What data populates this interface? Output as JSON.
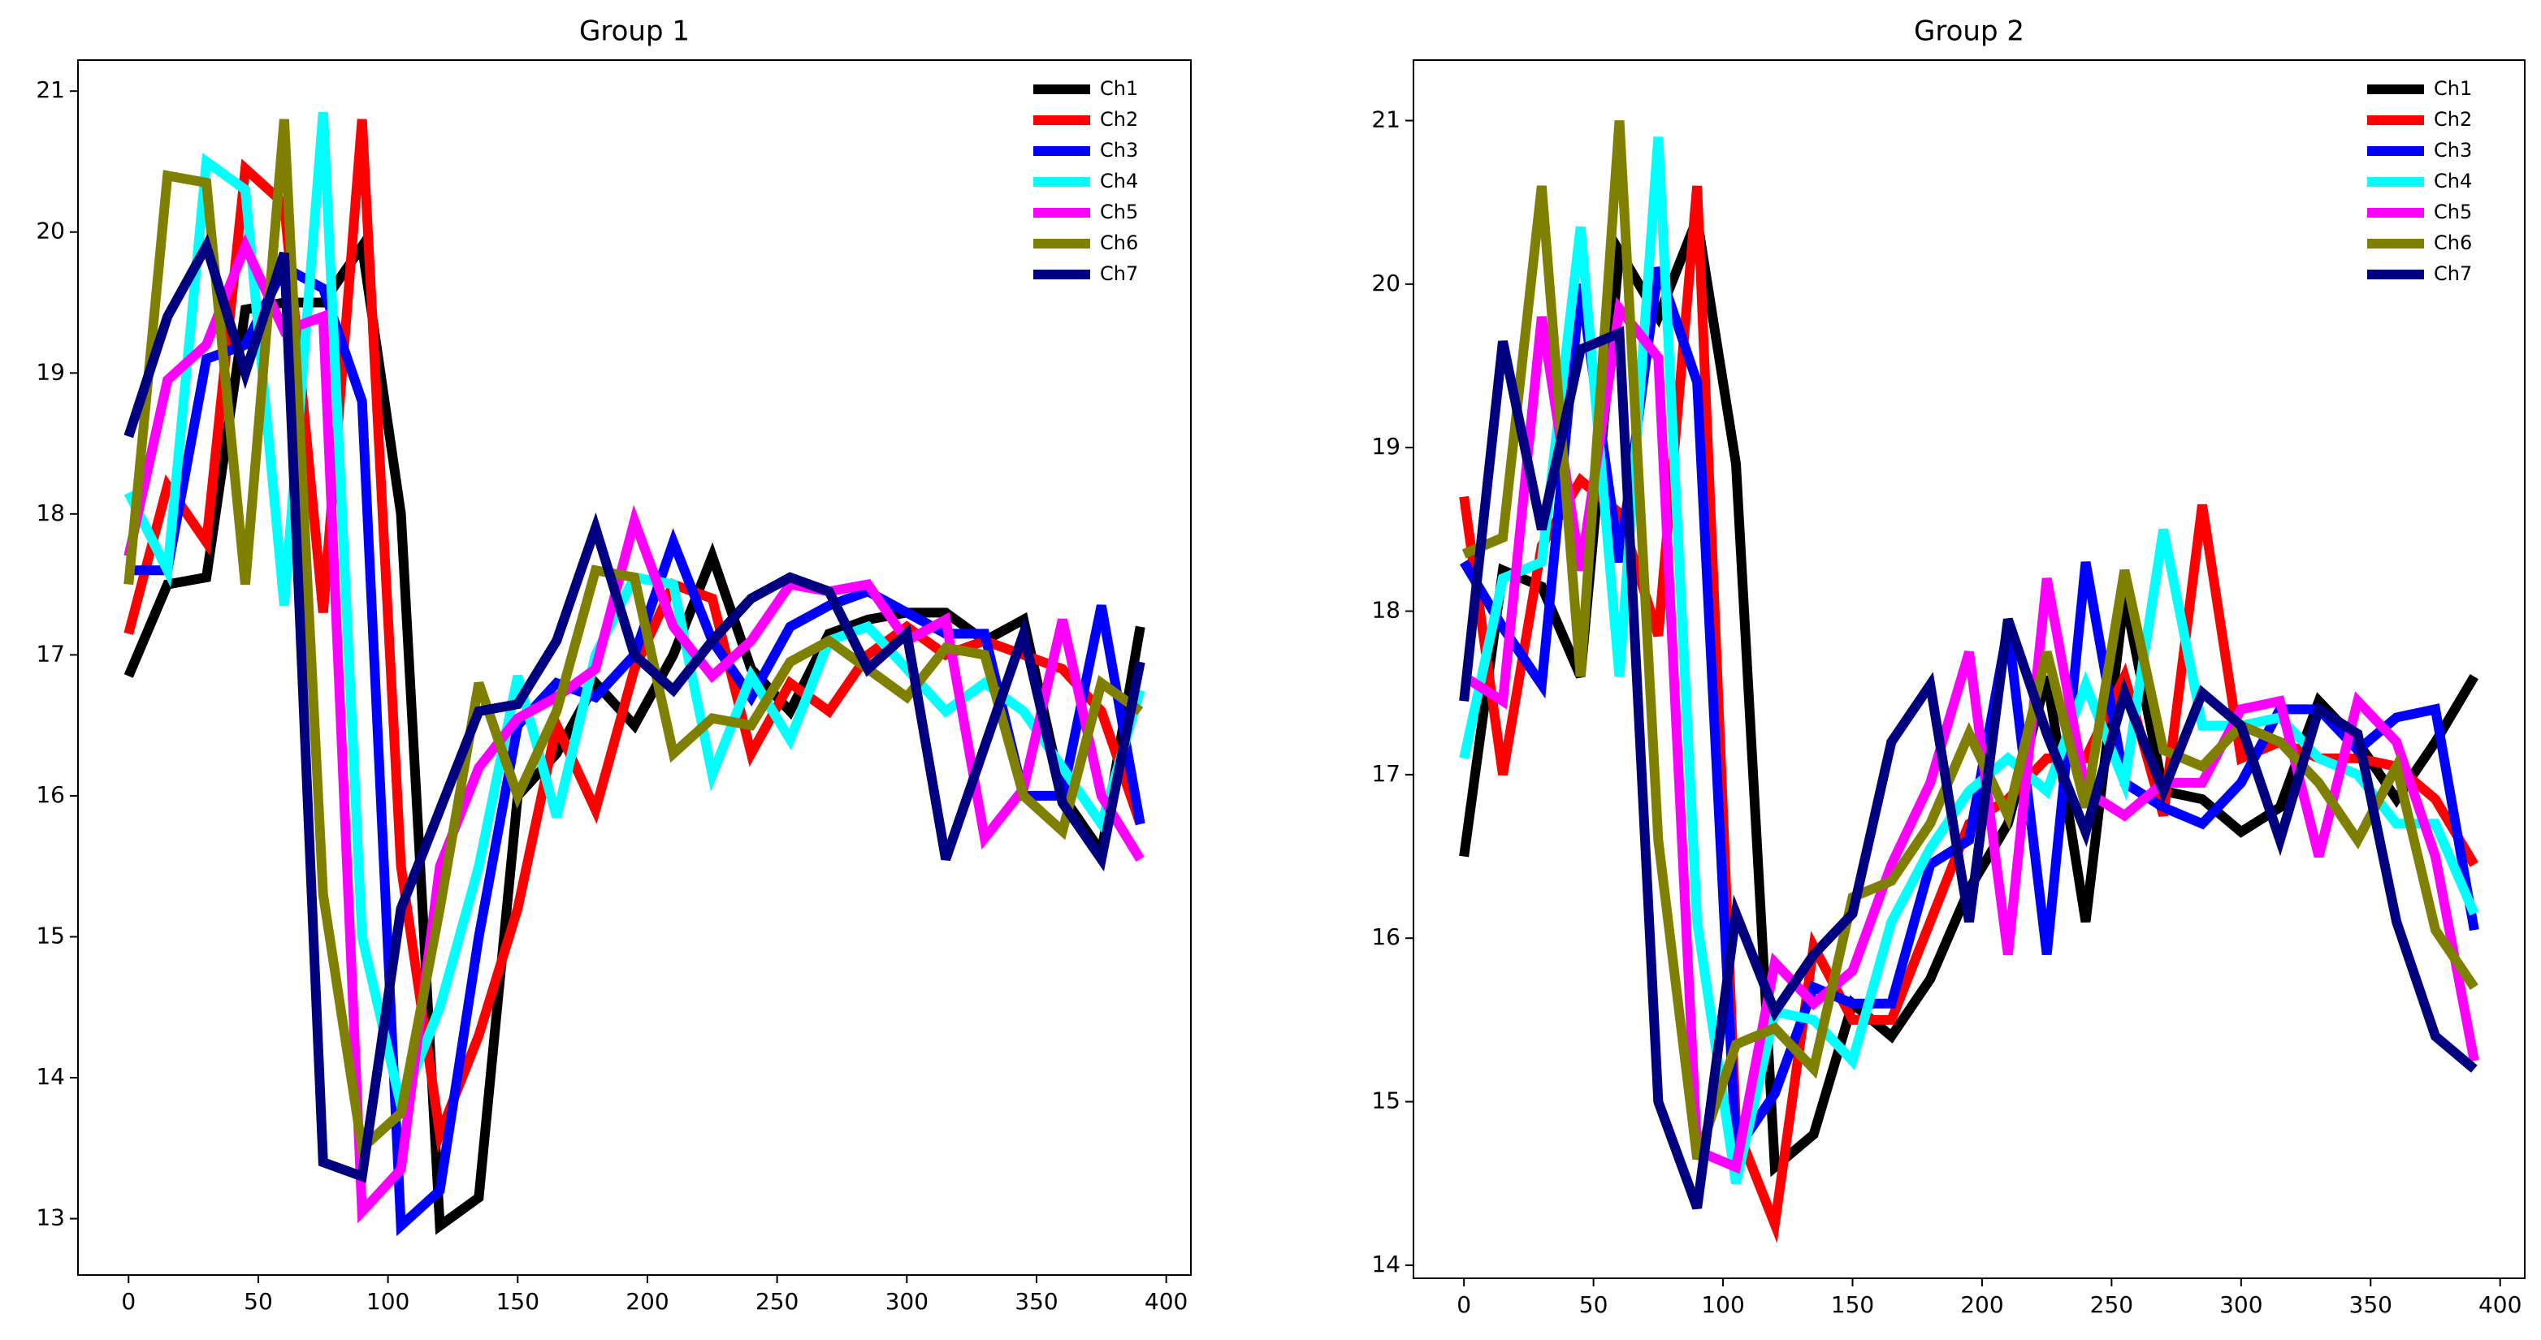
{
  "chart_data": [
    {
      "type": "line",
      "title": "Group 1",
      "x": [
        0,
        15,
        30,
        45,
        60,
        75,
        90,
        105,
        120,
        135,
        150,
        165,
        180,
        195,
        210,
        225,
        240,
        255,
        270,
        285,
        300,
        315,
        330,
        345,
        360,
        375,
        390
      ],
      "xlim": [
        -19.5,
        409.5
      ],
      "xticks": [
        0,
        50,
        100,
        150,
        200,
        250,
        300,
        350,
        400
      ],
      "ylim": [
        12.6,
        21.22
      ],
      "yticks": [
        13,
        14,
        15,
        16,
        17,
        18,
        19,
        20,
        21
      ],
      "legend": "upper right",
      "series": [
        {
          "name": "Ch1",
          "color": "#000000",
          "values": [
            16.85,
            17.5,
            17.55,
            19.45,
            19.5,
            19.5,
            19.9,
            18.0,
            12.95,
            13.15,
            16.0,
            16.3,
            16.8,
            16.5,
            17.0,
            17.7,
            16.9,
            16.6,
            17.15,
            17.25,
            17.3,
            17.3,
            17.1,
            17.25,
            16.0,
            15.6,
            17.2
          ]
        },
        {
          "name": "Ch2",
          "color": "#ff0000",
          "values": [
            17.15,
            18.2,
            17.8,
            20.45,
            20.2,
            17.3,
            20.8,
            15.5,
            13.6,
            14.3,
            15.2,
            16.5,
            15.9,
            16.9,
            17.5,
            17.4,
            16.3,
            16.8,
            16.6,
            17.0,
            17.2,
            17.0,
            17.1,
            17.0,
            16.9,
            16.6,
            15.8
          ]
        },
        {
          "name": "Ch3",
          "color": "#0000ff",
          "values": [
            17.6,
            17.6,
            19.1,
            19.2,
            19.75,
            19.6,
            18.8,
            12.95,
            13.2,
            15.0,
            16.5,
            16.8,
            16.7,
            17.0,
            17.8,
            17.1,
            16.7,
            17.2,
            17.35,
            17.45,
            17.3,
            17.15,
            17.15,
            16.0,
            16.0,
            17.35,
            15.8
          ]
        },
        {
          "name": "Ch4",
          "color": "#00ffff",
          "values": [
            18.15,
            17.6,
            20.5,
            20.3,
            17.35,
            20.85,
            15.0,
            13.8,
            14.5,
            15.5,
            16.85,
            15.85,
            17.0,
            17.55,
            17.5,
            16.15,
            16.85,
            16.4,
            17.1,
            17.2,
            16.9,
            16.6,
            16.8,
            16.6,
            16.2,
            15.8,
            16.75
          ]
        },
        {
          "name": "Ch5",
          "color": "#ff00ff",
          "values": [
            17.7,
            18.95,
            19.2,
            19.9,
            19.3,
            19.4,
            13.05,
            13.35,
            15.5,
            16.2,
            16.55,
            16.7,
            16.9,
            17.95,
            17.2,
            16.85,
            17.1,
            17.5,
            17.45,
            17.5,
            17.1,
            17.25,
            15.7,
            16.05,
            17.25,
            16.0,
            15.55
          ]
        },
        {
          "name": "Ch6",
          "color": "#808000",
          "values": [
            17.5,
            20.4,
            20.35,
            17.5,
            20.8,
            15.3,
            13.5,
            13.75,
            15.2,
            16.8,
            16.0,
            16.6,
            17.6,
            17.55,
            16.3,
            16.55,
            16.5,
            16.95,
            17.1,
            16.9,
            16.7,
            17.05,
            17.0,
            16.0,
            15.75,
            16.8,
            16.6
          ]
        },
        {
          "name": "Ch7",
          "color": "#000080",
          "values": [
            18.55,
            19.4,
            19.9,
            19.0,
            19.85,
            13.4,
            13.3,
            15.2,
            15.9,
            16.6,
            16.65,
            17.1,
            17.9,
            17.0,
            16.75,
            17.1,
            17.4,
            17.55,
            17.45,
            16.9,
            17.15,
            15.55,
            16.35,
            17.15,
            15.95,
            15.55,
            16.95
          ]
        }
      ]
    },
    {
      "type": "line",
      "title": "Group 2",
      "x": [
        0,
        15,
        30,
        45,
        60,
        75,
        90,
        105,
        120,
        135,
        150,
        165,
        180,
        195,
        210,
        225,
        240,
        255,
        270,
        285,
        300,
        315,
        330,
        345,
        360,
        375,
        390
      ],
      "xlim": [
        -19.5,
        409.5
      ],
      "xticks": [
        0,
        50,
        100,
        150,
        200,
        250,
        300,
        350,
        400
      ],
      "ylim": [
        13.92,
        21.37
      ],
      "yticks": [
        14,
        15,
        16,
        17,
        18,
        19,
        20,
        21
      ],
      "legend": "upper right",
      "series": [
        {
          "name": "Ch1",
          "color": "#000000",
          "values": [
            16.5,
            18.25,
            18.15,
            17.6,
            20.2,
            19.8,
            20.4,
            18.9,
            14.6,
            14.8,
            15.6,
            15.4,
            15.75,
            16.3,
            16.7,
            17.6,
            16.1,
            18.1,
            16.9,
            16.85,
            16.65,
            16.8,
            17.45,
            17.2,
            16.85,
            17.2,
            17.6
          ]
        },
        {
          "name": "Ch2",
          "color": "#ff0000",
          "values": [
            18.7,
            17.0,
            18.4,
            18.8,
            18.6,
            17.85,
            20.6,
            14.85,
            14.25,
            15.95,
            15.5,
            15.5,
            16.1,
            16.7,
            16.85,
            17.1,
            17.1,
            17.6,
            16.75,
            18.65,
            17.1,
            17.2,
            17.1,
            17.1,
            17.05,
            16.85,
            16.45
          ]
        },
        {
          "name": "Ch3",
          "color": "#0000ff",
          "values": [
            18.3,
            17.9,
            17.55,
            20.0,
            18.3,
            20.1,
            19.4,
            14.7,
            15.05,
            15.7,
            15.6,
            15.6,
            16.45,
            16.6,
            17.9,
            15.9,
            18.3,
            16.95,
            16.8,
            16.7,
            16.95,
            17.4,
            17.4,
            17.15,
            17.35,
            17.4,
            16.05
          ]
        },
        {
          "name": "Ch4",
          "color": "#00ffff",
          "values": [
            17.1,
            18.2,
            18.3,
            20.35,
            17.6,
            20.9,
            16.1,
            14.5,
            15.55,
            15.5,
            15.25,
            16.1,
            16.55,
            16.9,
            17.1,
            16.9,
            17.55,
            16.95,
            18.5,
            17.3,
            17.3,
            17.35,
            17.1,
            17.0,
            16.7,
            16.7,
            16.15
          ]
        },
        {
          "name": "Ch5",
          "color": "#ff00ff",
          "values": [
            17.6,
            17.45,
            19.8,
            18.25,
            19.85,
            19.55,
            14.7,
            14.6,
            15.85,
            15.6,
            15.8,
            16.45,
            16.95,
            17.75,
            15.9,
            18.2,
            16.9,
            16.75,
            16.95,
            16.95,
            17.4,
            17.45,
            16.5,
            17.45,
            17.2,
            16.5,
            15.25
          ]
        },
        {
          "name": "Ch6",
          "color": "#808000",
          "values": [
            18.35,
            18.45,
            20.6,
            17.6,
            21.0,
            16.6,
            14.65,
            15.35,
            15.45,
            15.2,
            16.25,
            16.35,
            16.7,
            17.25,
            16.75,
            17.75,
            16.8,
            18.25,
            17.15,
            17.05,
            17.3,
            17.2,
            16.95,
            16.6,
            17.05,
            16.05,
            15.7
          ]
        },
        {
          "name": "Ch7",
          "color": "#000080",
          "values": [
            17.45,
            19.65,
            18.5,
            19.6,
            19.7,
            15.0,
            14.35,
            16.15,
            15.55,
            15.9,
            16.15,
            17.2,
            17.55,
            16.1,
            17.95,
            17.25,
            16.65,
            17.5,
            16.9,
            17.5,
            17.3,
            16.6,
            17.4,
            17.25,
            16.1,
            15.4,
            15.2
          ]
        }
      ]
    }
  ]
}
